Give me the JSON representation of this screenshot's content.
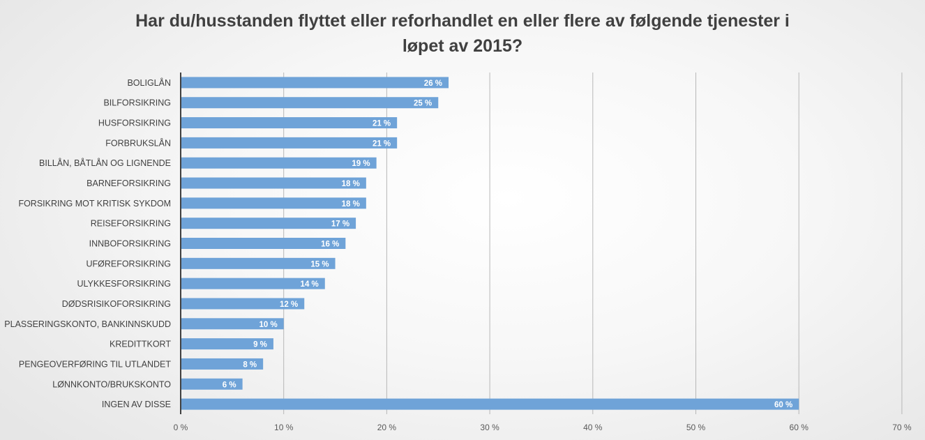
{
  "chart_data": {
    "type": "bar",
    "orientation": "horizontal",
    "title_lines": [
      "Har du/husstanden flyttet eller reforhandlet en eller flere av følgende tjenester i",
      "løpet av 2015?"
    ],
    "categories": [
      "BOLIGLÅN",
      "BILFORSIKRING",
      "HUSFORSIKRING",
      "FORBRUKSLÅN",
      "BILLÅN, BÅTLÅN OG LIGNENDE",
      "BARNEFORSIKRING",
      "FORSIKRING MOT KRITISK SYKDOM",
      "REISEFORSIKRING",
      "INNBOFORSIKRING",
      "UFØREFORSIKRING",
      "ULYKKESFORSIKRING",
      "DØDSRISIKOFORSIKRING",
      "PLASSERINGSKONTO, BANKINNSKUDD",
      "KREDITTKORT",
      "PENGEOVERFØRING TIL UTLANDET",
      "LØNNKONTO/BRUKSKONTO",
      "INGEN AV DISSE"
    ],
    "values": [
      26,
      25,
      21,
      21,
      19,
      18,
      18,
      17,
      16,
      15,
      14,
      12,
      10,
      9,
      8,
      6,
      60
    ],
    "value_labels": [
      "26 %",
      "25 %",
      "21 %",
      "21 %",
      "19 %",
      "18 %",
      "18 %",
      "17 %",
      "16 %",
      "15 %",
      "14 %",
      "12 %",
      "10 %",
      "9 %",
      "8 %",
      "6 %",
      "60 %"
    ],
    "x_ticks": [
      "0 %",
      "10 %",
      "20 %",
      "30 %",
      "40 %",
      "50 %",
      "60 %",
      "70 %"
    ],
    "xlim": [
      0,
      70
    ],
    "grid": "vertical",
    "legend": "none",
    "colors": {
      "bar": "#6fa3d8",
      "gridline": "#b7b7b7",
      "axis": "#404040"
    }
  }
}
